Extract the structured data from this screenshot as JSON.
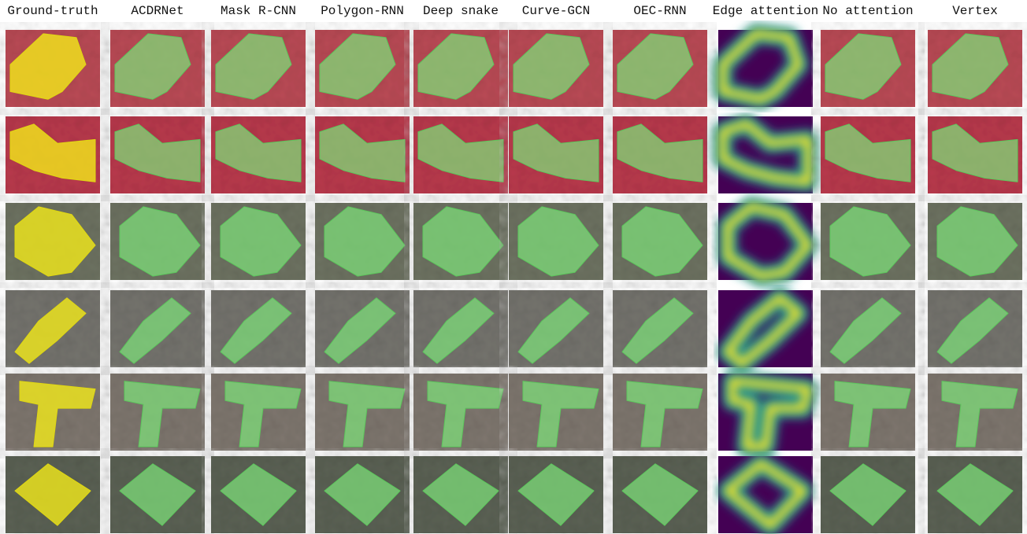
{
  "figure": {
    "columns": [
      "Ground-truth",
      "ACDRNet",
      "Mask R-CNN",
      "Polygon-RNN",
      "Deep snake",
      "Curve-GCN",
      "OEC-RNN",
      "Edge attention",
      "No attention",
      "Vertex"
    ]
  }
}
